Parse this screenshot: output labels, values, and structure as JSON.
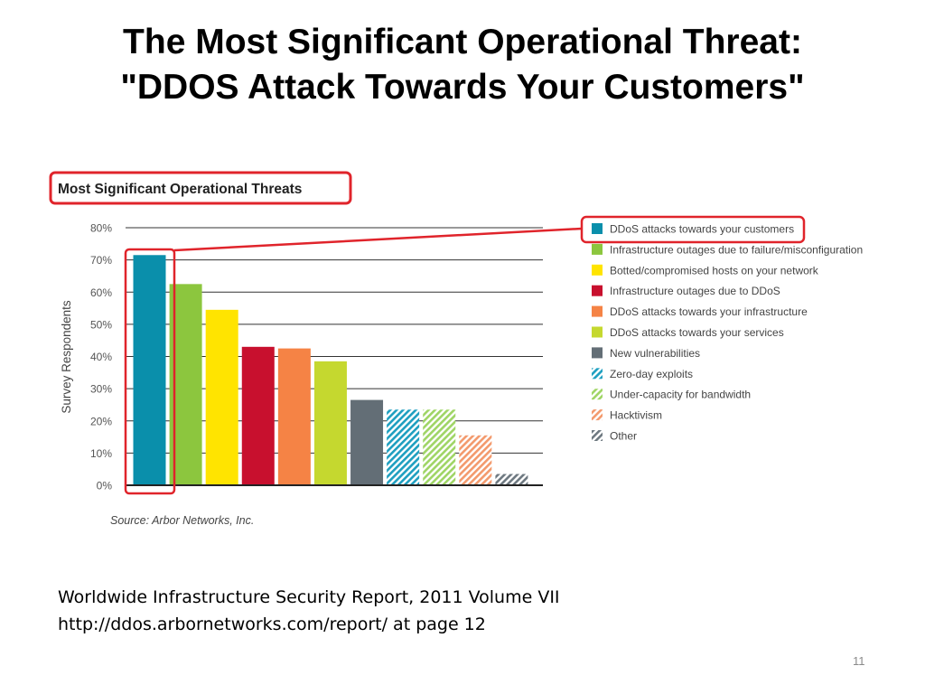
{
  "slide": {
    "title_line1": "The Most Significant Operational Threat:",
    "title_line2": "\"DDOS Attack Towards Your Customers\"",
    "footer_line1": "Worldwide Infrastructure Security Report, 2011 Volume VII",
    "footer_line2": "http://ddos.arbornetworks.com/report/ at page 12",
    "page_number": "11"
  },
  "chart_data": {
    "type": "bar",
    "title": "Most Significant Operational Threats",
    "ylabel": "Survey Respondents",
    "xlabel": "",
    "ylim": [
      0,
      80
    ],
    "yticks": [
      "0%",
      "10%",
      "20%",
      "30%",
      "40%",
      "50%",
      "60%",
      "70%",
      "80%"
    ],
    "grid": true,
    "legend_position": "right",
    "source": "Source: Arbor Networks, Inc.",
    "highlighted_category": "DDoS attacks towards your customers",
    "categories": [
      "DDoS attacks towards your customers",
      "Infrastructure outages due to failure/misconfiguration",
      "Botted/compromised hosts on your network",
      "Infrastructure outages due to DDoS",
      "DDoS attacks towards your infrastructure",
      "DDoS attacks towards your services",
      "New vulnerabilities",
      "Zero-day exploits",
      "Under-capacity for bandwidth",
      "Hacktivism",
      "Other"
    ],
    "values": [
      71.5,
      62.5,
      54.5,
      43,
      42.5,
      38.5,
      26.5,
      23.5,
      23.5,
      15.5,
      3.5
    ],
    "colors": [
      "#0a8fab",
      "#8cc63e",
      "#ffe400",
      "#c8102e",
      "#f58345",
      "#c5d82f",
      "#636e76",
      "#1e9fc0",
      "#9fd565",
      "#f39a6d",
      "#6d7880"
    ],
    "hatched": [
      false,
      false,
      false,
      false,
      false,
      false,
      false,
      true,
      true,
      true,
      true
    ]
  }
}
